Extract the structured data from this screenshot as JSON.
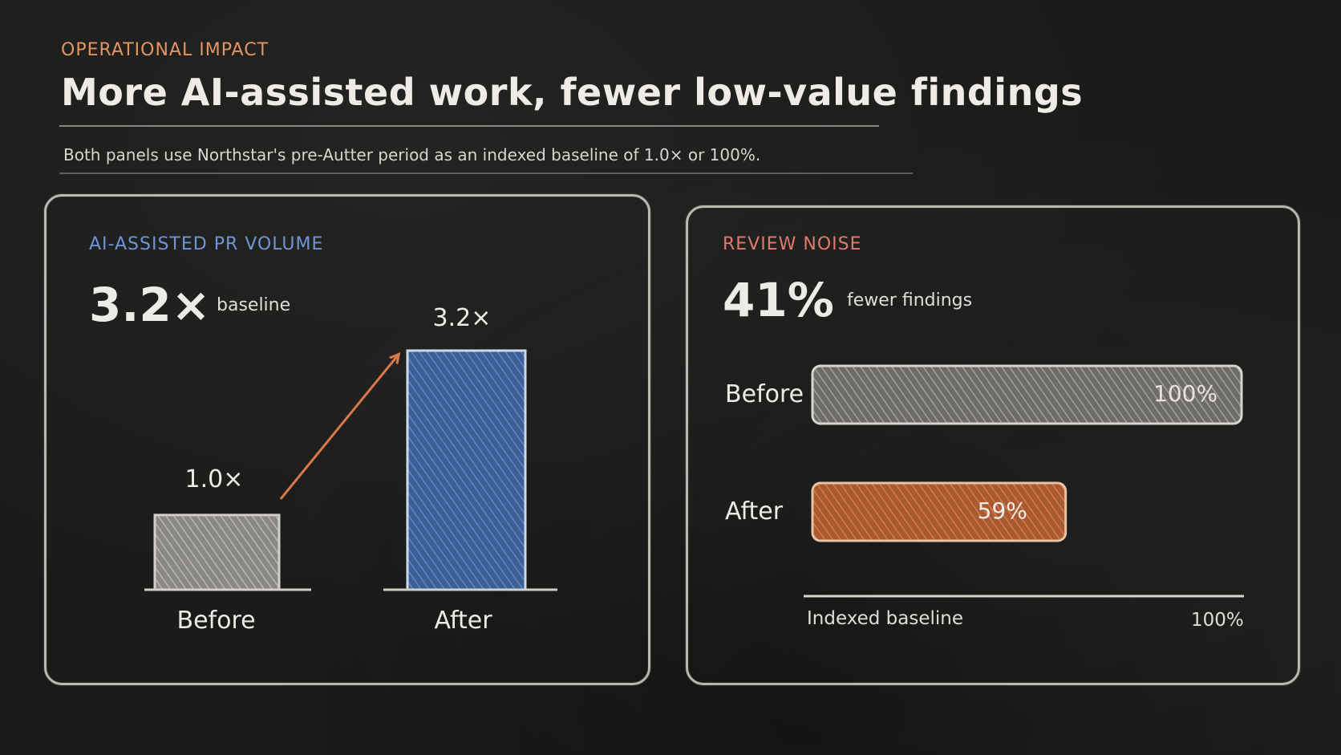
{
  "header": {
    "kicker": "OPERATIONAL IMPACT",
    "title": "More AI-assisted work, fewer low-value findings",
    "subtitle": "Both panels use Northstar's pre-Autter period as an indexed baseline of 1.0× or 100%."
  },
  "panels": {
    "left": {
      "label": "AI-ASSISTED PR VOLUME",
      "headline": "3.2×",
      "headline_note": "baseline"
    },
    "right": {
      "label": "REVIEW NOISE",
      "headline": "41%",
      "headline_note": "fewer findings",
      "axis_label": "Indexed baseline",
      "axis_end": "100%"
    }
  },
  "colors": {
    "chalk_white": "#cfccc5",
    "chalk_blue": "#5b86c9",
    "chalk_orange": "#d9794a",
    "chalk_red": "#e07a6c",
    "label_blue": "#6f95d6"
  },
  "chart_data": [
    {
      "type": "bar",
      "orientation": "vertical",
      "categories": [
        "Before",
        "After"
      ],
      "values": [
        1.0,
        3.2
      ],
      "value_labels": [
        "1.0×",
        "3.2×"
      ],
      "ylim": [
        0,
        3.2
      ],
      "grid": false
    },
    {
      "type": "bar",
      "orientation": "horizontal",
      "categories": [
        "Before",
        "After"
      ],
      "values": [
        100,
        59
      ],
      "value_labels": [
        "100%",
        "59%"
      ],
      "xlim": [
        0,
        100
      ],
      "grid": false
    }
  ]
}
